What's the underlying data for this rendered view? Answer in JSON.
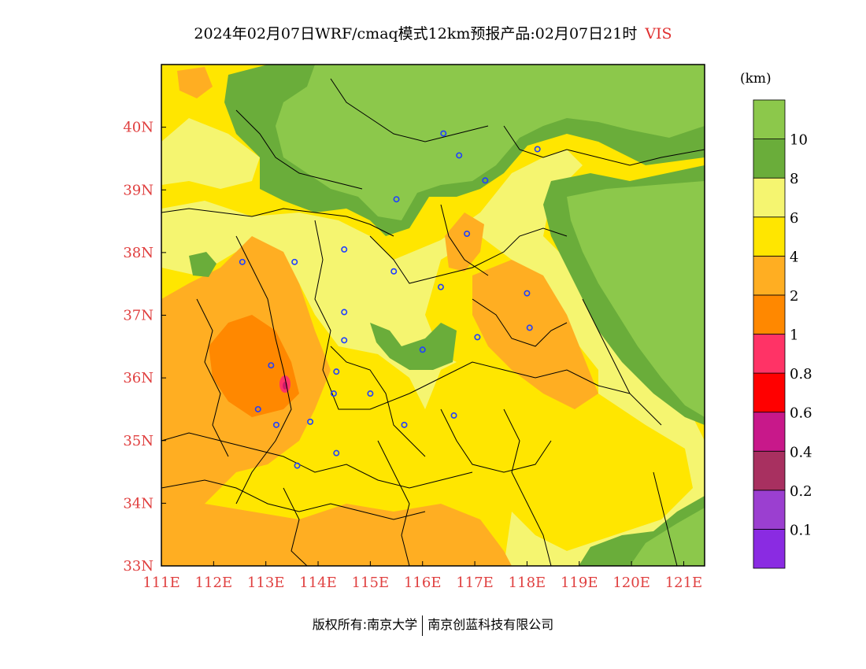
{
  "title": {
    "main": "2024年02月07日WRF/cmaq模式12km预报产品:02月07日21时",
    "variable": "VIS"
  },
  "unit_label": "(km)",
  "map": {
    "lon_range": [
      111,
      121.4
    ],
    "lat_range": [
      33,
      41
    ],
    "lon_ticks": [
      "111E",
      "112E",
      "113E",
      "114E",
      "115E",
      "116E",
      "117E",
      "118E",
      "119E",
      "120E",
      "121E"
    ],
    "lat_ticks": [
      "33N",
      "34N",
      "35N",
      "36N",
      "37N",
      "38N",
      "39N",
      "40N"
    ],
    "station_marker_color": "#2040ff",
    "stations": [
      [
        116.4,
        39.9
      ],
      [
        116.7,
        39.55
      ],
      [
        118.2,
        39.65
      ],
      [
        117.2,
        39.15
      ],
      [
        115.5,
        38.85
      ],
      [
        116.85,
        38.3
      ],
      [
        112.55,
        37.85
      ],
      [
        113.55,
        37.85
      ],
      [
        114.5,
        38.05
      ],
      [
        115.45,
        37.7
      ],
      [
        116.35,
        37.45
      ],
      [
        118.0,
        37.35
      ],
      [
        114.5,
        37.05
      ],
      [
        114.5,
        36.6
      ],
      [
        116.0,
        36.45
      ],
      [
        117.05,
        36.65
      ],
      [
        118.05,
        36.8
      ],
      [
        113.1,
        36.2
      ],
      [
        114.35,
        36.1
      ],
      [
        114.3,
        35.75
      ],
      [
        115.0,
        35.75
      ],
      [
        112.85,
        35.5
      ],
      [
        113.2,
        35.25
      ],
      [
        113.85,
        35.3
      ],
      [
        115.65,
        35.25
      ],
      [
        116.6,
        35.4
      ],
      [
        114.35,
        34.8
      ],
      [
        113.6,
        34.6
      ]
    ]
  },
  "legend": {
    "colors": [
      "#8a2be2",
      "#9b3fd0",
      "#a83060",
      "#c8188a",
      "#ff0000",
      "#ff3366",
      "#ff8800",
      "#ffae22",
      "#ffe600",
      "#f5f570",
      "#6aad3a",
      "#8cc84b"
    ],
    "labels": [
      "0.1",
      "0.2",
      "0.4",
      "0.6",
      "0.8",
      "1",
      "2",
      "4",
      "6",
      "8",
      "10"
    ]
  },
  "credit": {
    "left": "版权所有:南京大学",
    "right": "南京创蓝科技有限公司"
  }
}
